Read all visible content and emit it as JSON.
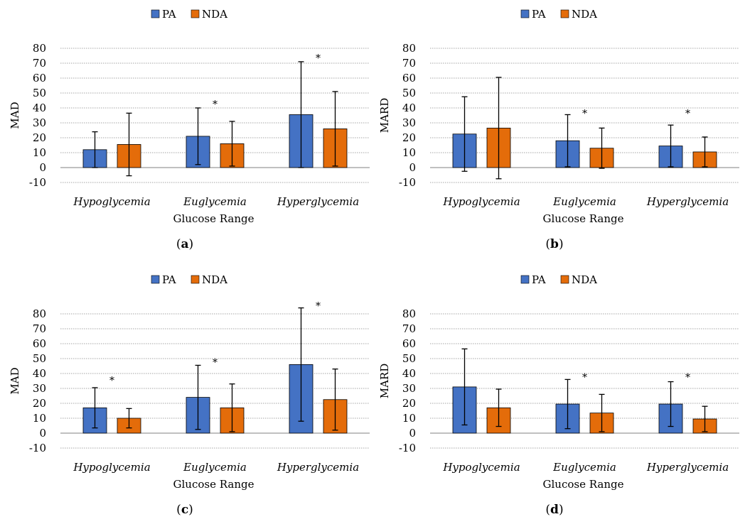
{
  "panels": [
    {
      "label_open": "(",
      "label_letter": "a",
      "label_close": ")"
    },
    {
      "label_open": "(",
      "label_letter": "b",
      "label_close": ")"
    },
    {
      "label_open": "(",
      "label_letter": "c",
      "label_close": ")"
    },
    {
      "label_open": "(",
      "label_letter": "d",
      "label_close": ")"
    }
  ],
  "colors": {
    "PA": "#4472C4",
    "NDA": "#E46C0A",
    "grid": "#a6a6a6"
  },
  "chart_data": [
    {
      "type": "bar",
      "title": "",
      "xlabel": "Glucose Range",
      "ylabel": "MAD",
      "ylim": [
        -10,
        80
      ],
      "yticks": [
        -10,
        0,
        10,
        20,
        30,
        40,
        50,
        60,
        70,
        80
      ],
      "grid": true,
      "legend": "top-center",
      "categories": [
        "Hypoglycemia",
        "Euglycemia",
        "Hyperglycemia"
      ],
      "series": [
        {
          "name": "PA",
          "values": [
            12,
            21,
            35.5
          ],
          "error": [
            12,
            19,
            35.5
          ]
        },
        {
          "name": "NDA",
          "values": [
            15.5,
            16,
            26
          ],
          "error": [
            21,
            15,
            25
          ]
        }
      ],
      "annotations": [
        {
          "text": "*",
          "category": "Euglycemia",
          "value": 43
        },
        {
          "text": "*",
          "category": "Hyperglycemia",
          "value": 74
        }
      ]
    },
    {
      "type": "bar",
      "title": "",
      "xlabel": "Glucose Range",
      "ylabel": "MARD",
      "ylim": [
        -10,
        80
      ],
      "yticks": [
        -10,
        0,
        10,
        20,
        30,
        40,
        50,
        60,
        70,
        80
      ],
      "grid": true,
      "legend": "top-center",
      "categories": [
        "Hypoglycemia",
        "Euglycemia",
        "Hyperglycemia"
      ],
      "series": [
        {
          "name": "PA",
          "values": [
            22.5,
            18,
            14.5
          ],
          "error": [
            25,
            17.5,
            14
          ]
        },
        {
          "name": "NDA",
          "values": [
            26.5,
            13,
            10.5
          ],
          "error": [
            34,
            13.5,
            10
          ]
        }
      ],
      "annotations": [
        {
          "text": "*",
          "category": "Euglycemia",
          "value": 37
        },
        {
          "text": "*",
          "category": "Hyperglycemia",
          "value": 37
        }
      ]
    },
    {
      "type": "bar",
      "title": "",
      "xlabel": "Glucose Range",
      "ylabel": "MAD",
      "ylim": [
        -10,
        80
      ],
      "yticks": [
        -10,
        0,
        10,
        20,
        30,
        40,
        50,
        60,
        70,
        80
      ],
      "grid": true,
      "legend": "top-center",
      "categories": [
        "Hypoglycemia",
        "Euglycemia",
        "Hyperglycemia"
      ],
      "series": [
        {
          "name": "PA",
          "values": [
            17,
            24,
            46
          ],
          "error": [
            13.5,
            21.5,
            38
          ]
        },
        {
          "name": "NDA",
          "values": [
            10,
            17,
            22.5
          ],
          "error": [
            6.5,
            16,
            20.5
          ]
        }
      ],
      "annotations": [
        {
          "text": "*",
          "category": "Hypoglycemia",
          "value": 36
        },
        {
          "text": "*",
          "category": "Euglycemia",
          "value": 48
        },
        {
          "text": "*",
          "category": "Hyperglycemia",
          "value": 86
        }
      ]
    },
    {
      "type": "bar",
      "title": "",
      "xlabel": "Glucose Range",
      "ylabel": "MARD",
      "ylim": [
        -10,
        80
      ],
      "yticks": [
        -10,
        0,
        10,
        20,
        30,
        40,
        50,
        60,
        70,
        80
      ],
      "grid": true,
      "legend": "top-center",
      "categories": [
        "Hypoglycemia",
        "Euglycemia",
        "Hyperglycemia"
      ],
      "series": [
        {
          "name": "PA",
          "values": [
            31,
            19.5,
            19.5
          ],
          "error": [
            25.5,
            16.5,
            15
          ]
        },
        {
          "name": "NDA",
          "values": [
            17,
            13.5,
            9.5
          ],
          "error": [
            12.5,
            12.5,
            8.5
          ]
        }
      ],
      "annotations": [
        {
          "text": "*",
          "category": "Euglycemia",
          "value": 38
        },
        {
          "text": "*",
          "category": "Hyperglycemia",
          "value": 38
        }
      ]
    }
  ]
}
